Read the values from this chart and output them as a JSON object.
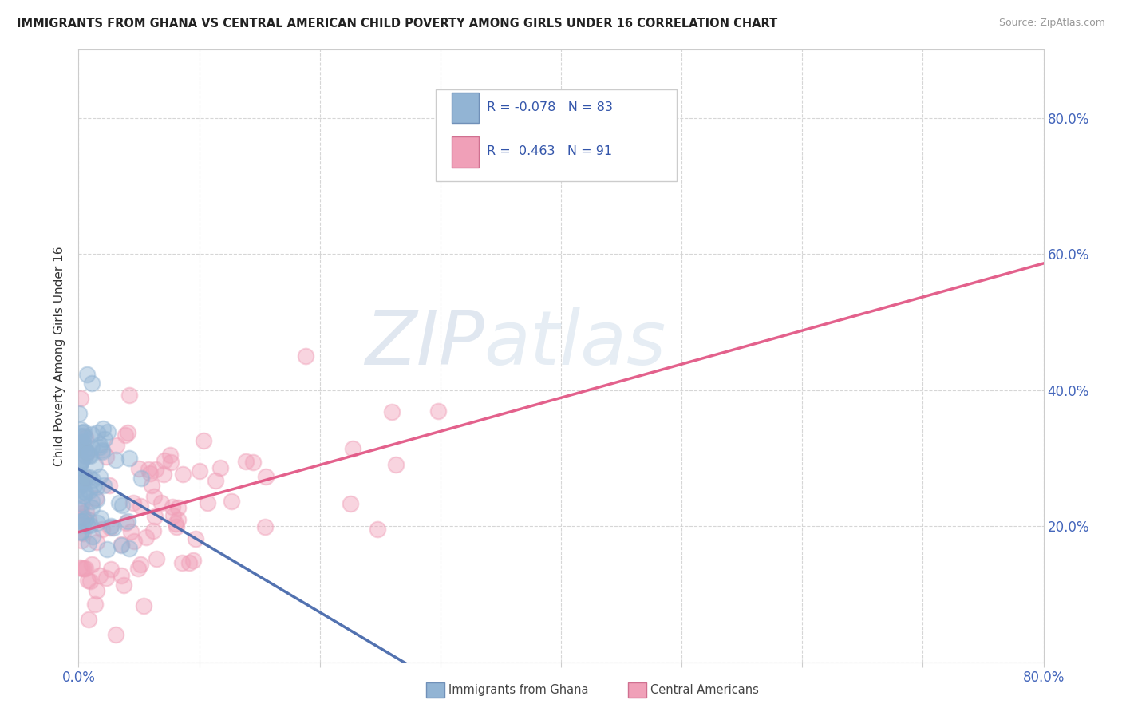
{
  "title": "IMMIGRANTS FROM GHANA VS CENTRAL AMERICAN CHILD POVERTY AMONG GIRLS UNDER 16 CORRELATION CHART",
  "source": "Source: ZipAtlas.com",
  "ylabel": "Child Poverty Among Girls Under 16",
  "xlim": [
    0.0,
    0.8
  ],
  "ylim": [
    0.0,
    0.9
  ],
  "ghana_color": "#92b4d4",
  "central_color": "#f0a0b8",
  "ghana_line_color": "#4466aa",
  "central_line_color": "#e05080",
  "ghana_R": -0.078,
  "ghana_N": 83,
  "central_R": 0.463,
  "central_N": 91,
  "background_color": "#ffffff",
  "grid_color": "#cccccc",
  "watermark_zip": "ZIP",
  "watermark_atlas": "atlas",
  "legend_text1": "R = -0.078   N = 83",
  "legend_text2": "R =  0.463   N = 91"
}
